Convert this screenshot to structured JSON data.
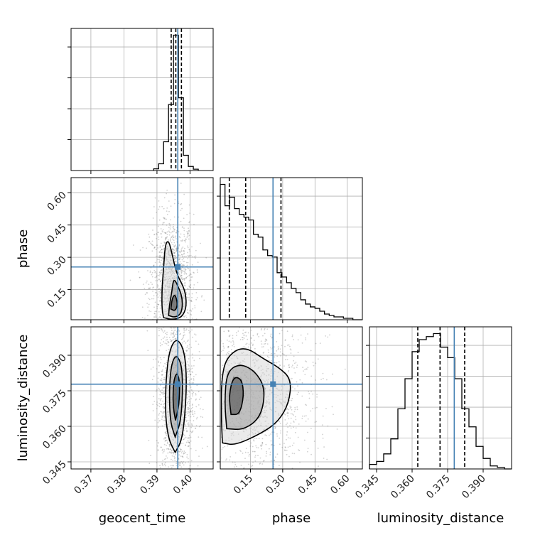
{
  "chart_data": {
    "type": "corner",
    "parameters": [
      "geocent_time",
      "phase",
      "luminosity_distance"
    ],
    "axis_labels": {
      "geocent_time": "geocent_time",
      "phase": "phase",
      "luminosity_distance": "luminosity_distance"
    },
    "ranges": {
      "geocent_time": [
        0.364,
        0.407
      ],
      "phase": [
        0.01,
        0.67
      ],
      "luminosity_distance": [
        0.342,
        0.402
      ]
    },
    "ticks": {
      "geocent_time": [
        0.37,
        0.38,
        0.39,
        0.4
      ],
      "phase": [
        0.15,
        0.3,
        0.45,
        0.6
      ],
      "luminosity_distance": [
        0.345,
        0.36,
        0.375,
        0.39
      ]
    },
    "tick_labels": {
      "geocent_time": [
        "0.37",
        "0.38",
        "0.39",
        "0.40"
      ],
      "phase": [
        "0.15",
        "0.30",
        "0.45",
        "0.60"
      ],
      "luminosity_distance": [
        "0.345",
        "0.360",
        "0.375",
        "0.390"
      ]
    },
    "truth_values": {
      "geocent_time": 0.3963,
      "phase": 0.255,
      "luminosity_distance": 0.3778
    },
    "quantiles_16_50_84": {
      "geocent_time": [
        0.3943,
        0.3957,
        0.3974
      ],
      "phase": [
        0.052,
        0.128,
        0.292
      ],
      "luminosity_distance": [
        0.3624,
        0.3718,
        0.3822
      ]
    },
    "marginals": {
      "geocent_time": {
        "bin_edges": [
          0.389,
          0.3905,
          0.392,
          0.3935,
          0.395,
          0.3965,
          0.398,
          0.3995,
          0.401,
          0.4025
        ],
        "counts": [
          0.05,
          0.2,
          0.85,
          1.95,
          4.0,
          2.15,
          0.45,
          0.12,
          0.04
        ]
      },
      "phase": {
        "bin_edges": [
          0.01,
          0.032,
          0.054,
          0.076,
          0.098,
          0.12,
          0.142,
          0.164,
          0.186,
          0.208,
          0.23,
          0.252,
          0.274,
          0.296,
          0.318,
          0.34,
          0.362,
          0.384,
          0.406,
          0.428,
          0.45,
          0.472,
          0.494,
          0.516,
          0.538,
          0.56,
          0.582,
          0.604,
          0.626,
          0.648,
          0.67
        ],
        "counts": [
          0.95,
          0.8,
          0.86,
          0.78,
          0.74,
          0.72,
          0.7,
          0.6,
          0.58,
          0.49,
          0.45,
          0.44,
          0.33,
          0.3,
          0.26,
          0.22,
          0.19,
          0.14,
          0.11,
          0.09,
          0.08,
          0.06,
          0.04,
          0.03,
          0.02,
          0.02,
          0.01,
          0.01,
          0.0,
          0.0
        ]
      },
      "luminosity_distance": {
        "bin_edges": [
          0.342,
          0.345,
          0.348,
          0.351,
          0.354,
          0.357,
          0.36,
          0.363,
          0.366,
          0.369,
          0.372,
          0.375,
          0.378,
          0.381,
          0.384,
          0.387,
          0.39,
          0.393,
          0.396,
          0.399,
          0.402
        ],
        "counts": [
          0.03,
          0.05,
          0.1,
          0.2,
          0.4,
          0.6,
          0.78,
          0.86,
          0.88,
          0.9,
          0.81,
          0.74,
          0.6,
          0.4,
          0.28,
          0.15,
          0.07,
          0.02,
          0.01,
          0.0
        ]
      }
    },
    "joint_2d": {
      "phase_vs_geocent_time": {
        "contours": [
          [
            [
              0.392,
              0.02
            ],
            [
              0.3945,
              0.01
            ],
            [
              0.3975,
              0.02
            ],
            [
              0.399,
              0.07
            ],
            [
              0.3985,
              0.15
            ],
            [
              0.396,
              0.22
            ],
            [
              0.3945,
              0.32
            ],
            [
              0.3935,
              0.38
            ],
            [
              0.3925,
              0.36
            ],
            [
              0.392,
              0.25
            ],
            [
              0.3915,
              0.15
            ],
            [
              0.3915,
              0.06
            ]
          ],
          [
            [
              0.3935,
              0.03
            ],
            [
              0.3955,
              0.02
            ],
            [
              0.3975,
              0.04
            ],
            [
              0.3978,
              0.11
            ],
            [
              0.396,
              0.18
            ],
            [
              0.395,
              0.2
            ],
            [
              0.3945,
              0.14
            ],
            [
              0.3938,
              0.08
            ]
          ],
          [
            [
              0.3942,
              0.06
            ],
            [
              0.3955,
              0.05
            ],
            [
              0.3963,
              0.08
            ],
            [
              0.3955,
              0.13
            ],
            [
              0.3946,
              0.11
            ]
          ]
        ]
      },
      "luminosity_distance_vs_geocent_time": {
        "contours": [
          [
            [
              0.3955,
              0.349
            ],
            [
              0.3975,
              0.354
            ],
            [
              0.3985,
              0.365
            ],
            [
              0.399,
              0.38
            ],
            [
              0.3983,
              0.392
            ],
            [
              0.396,
              0.3975
            ],
            [
              0.3938,
              0.3925
            ],
            [
              0.3927,
              0.38
            ],
            [
              0.3925,
              0.365
            ],
            [
              0.3935,
              0.3545
            ]
          ],
          [
            [
              0.3955,
              0.3555
            ],
            [
              0.3972,
              0.362
            ],
            [
              0.3978,
              0.375
            ],
            [
              0.3975,
              0.386
            ],
            [
              0.3958,
              0.3905
            ],
            [
              0.3943,
              0.386
            ],
            [
              0.3937,
              0.375
            ],
            [
              0.394,
              0.362
            ]
          ],
          [
            [
              0.3956,
              0.3625
            ],
            [
              0.3967,
              0.369
            ],
            [
              0.3969,
              0.379
            ],
            [
              0.396,
              0.383
            ],
            [
              0.395,
              0.379
            ],
            [
              0.3948,
              0.369
            ]
          ]
        ]
      },
      "luminosity_distance_vs_phase": {
        "contours": [
          [
            [
              0.02,
              0.353
            ],
            [
              0.08,
              0.352
            ],
            [
              0.2,
              0.357
            ],
            [
              0.28,
              0.362
            ],
            [
              0.33,
              0.37
            ],
            [
              0.34,
              0.38
            ],
            [
              0.28,
              0.385
            ],
            [
              0.22,
              0.388
            ],
            [
              0.12,
              0.394
            ],
            [
              0.04,
              0.3895
            ],
            [
              0.015,
              0.38
            ],
            [
              0.015,
              0.363
            ]
          ],
          [
            [
              0.04,
              0.359
            ],
            [
              0.12,
              0.3585
            ],
            [
              0.2,
              0.364
            ],
            [
              0.22,
              0.376
            ],
            [
              0.17,
              0.3835
            ],
            [
              0.1,
              0.3865
            ],
            [
              0.04,
              0.383
            ],
            [
              0.03,
              0.37
            ]
          ],
          [
            [
              0.06,
              0.365
            ],
            [
              0.1,
              0.365
            ],
            [
              0.12,
              0.373
            ],
            [
              0.11,
              0.38
            ],
            [
              0.07,
              0.381
            ],
            [
              0.05,
              0.373
            ]
          ]
        ]
      }
    }
  }
}
